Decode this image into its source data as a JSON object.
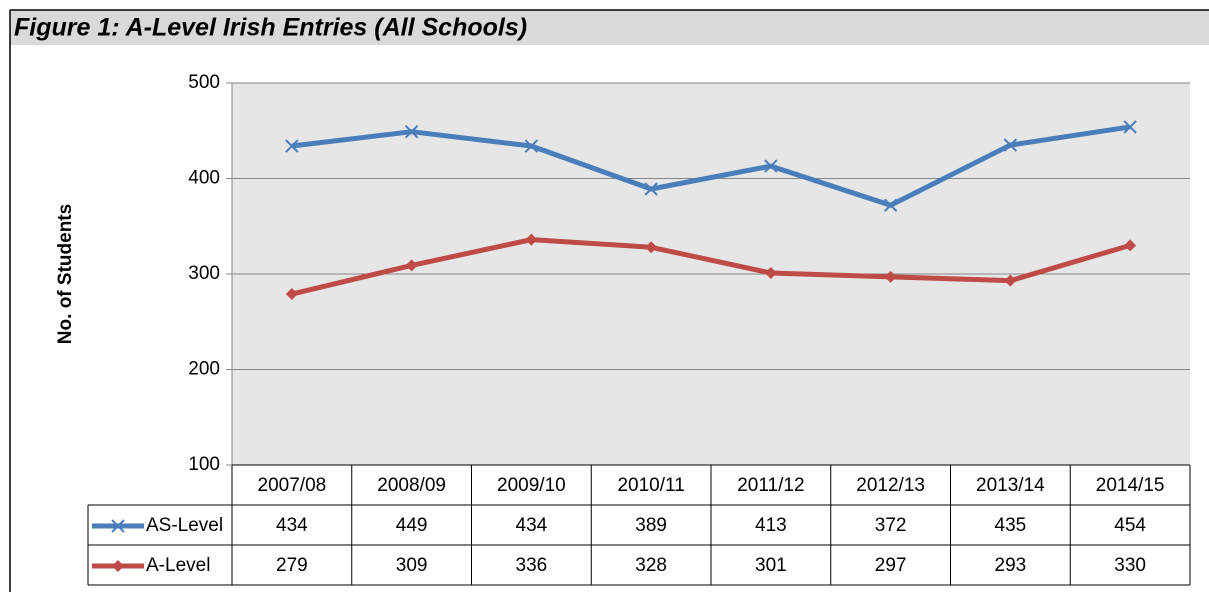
{
  "chart_data": {
    "type": "line",
    "title": "Figure 1:  A-Level Irish Entries (All Schools)",
    "y_label": "No. of Students",
    "categories": [
      "2007/08",
      "2008/09",
      "2009/10",
      "2010/11",
      "2011/12",
      "2012/13",
      "2013/14",
      "2014/15"
    ],
    "series": [
      {
        "name": "AS-Level",
        "color": "#4a7ebb",
        "marker": "x",
        "values": [
          434,
          449,
          434,
          389,
          413,
          372,
          435,
          454
        ]
      },
      {
        "name": "A-Level",
        "color": "#be4b48",
        "marker": "diamond",
        "values": [
          279,
          309,
          336,
          328,
          301,
          297,
          293,
          330
        ]
      }
    ],
    "ylim": [
      100,
      500
    ],
    "yticks": [
      100,
      200,
      300,
      400,
      500
    ],
    "grid": true,
    "data_table": true
  }
}
